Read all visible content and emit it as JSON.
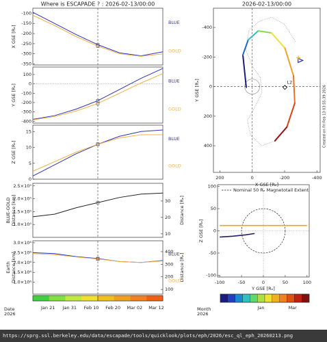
{
  "chart_data": [
    {
      "type": "line",
      "title": "Where is ESCAPADE ? : 2026-02-13/00:00",
      "ylabel": [
        "X GSE [Rₑ]"
      ],
      "x": [
        14,
        24,
        34,
        44,
        54,
        64,
        74
      ],
      "xlim": [
        14,
        74
      ],
      "cursor": 44,
      "ylim": [
        -355,
        -75
      ],
      "yticks": [
        -350,
        -300,
        -250,
        -200,
        -150,
        -100
      ],
      "series": [
        {
          "name": "BLUE",
          "color": "#3030c0",
          "values": [
            -95,
            -150,
            -205,
            -255,
            -295,
            -310,
            -290
          ]
        },
        {
          "name": "GOLD",
          "color": "#f0b040",
          "values": [
            -110,
            -160,
            -215,
            -262,
            -300,
            -312,
            -300
          ]
        }
      ]
    },
    {
      "type": "line",
      "ylabel": [
        "Y GSE [Rₑ]"
      ],
      "x": [
        14,
        24,
        34,
        44,
        54,
        64,
        74
      ],
      "xlim": [
        14,
        74
      ],
      "cursor": 44,
      "ylim": [
        -420,
        180
      ],
      "yticks": [
        -400,
        -300,
        -200,
        -100,
        0,
        100
      ],
      "zero_line": true,
      "series": [
        {
          "name": "BLUE",
          "color": "#3030c0",
          "values": [
            -380,
            -340,
            -270,
            -180,
            -60,
            60,
            165
          ]
        },
        {
          "name": "GOLD",
          "color": "#f0b040",
          "values": [
            -385,
            -350,
            -290,
            -210,
            -100,
            10,
            110
          ]
        }
      ]
    },
    {
      "type": "line",
      "ylabel": [
        "Z GSE [Rₑ]"
      ],
      "x": [
        14,
        24,
        34,
        44,
        54,
        64,
        74
      ],
      "xlim": [
        14,
        74
      ],
      "cursor": 44,
      "ylim": [
        0,
        17
      ],
      "yticks": [
        0,
        5,
        10,
        15
      ],
      "series": [
        {
          "name": "BLUE",
          "color": "#3030c0",
          "values": [
            1,
            4.5,
            8,
            11,
            13.5,
            15,
            15.5
          ]
        },
        {
          "name": "GOLD",
          "color": "#f0b040",
          "values": [
            2.5,
            5.5,
            8.5,
            11,
            13,
            14,
            14
          ]
        }
      ]
    },
    {
      "type": "line",
      "ylabel": [
        "BLUE-GOLD",
        "Distance [km]"
      ],
      "y2label": "Distance [Rₑ]",
      "x": [
        14,
        24,
        34,
        44,
        54,
        64,
        74
      ],
      "xlim": [
        14,
        74
      ],
      "cursor": 44,
      "ylim": [
        50000,
        260000
      ],
      "yticks": [
        {
          "value": 100000,
          "label": "1.0×10⁵"
        },
        {
          "value": 150000,
          "label": "1.5×10⁵"
        },
        {
          "value": 200000,
          "label": "2.0×10⁵"
        },
        {
          "value": 250000,
          "label": "2.5×10⁵"
        }
      ],
      "y2lim": [
        7.85,
        40.8
      ],
      "y2ticks": [
        10,
        20,
        30
      ],
      "series": [
        {
          "color": "#202020",
          "values": [
            130000,
            140000,
            165000,
            185000,
            205000,
            218000,
            222000
          ]
        }
      ]
    },
    {
      "type": "line",
      "ylabel": [
        "Earth",
        "Distance [km]"
      ],
      "y2label": "Distance [Rₑ]",
      "x": [
        14,
        24,
        34,
        44,
        54,
        64,
        74
      ],
      "xlim": [
        14,
        74
      ],
      "cursor": 44,
      "ylim": [
        400000,
        3100000
      ],
      "yticks": [
        {
          "value": 1000000,
          "label": "1.0×10⁶"
        },
        {
          "value": 1500000,
          "label": "1.5×10⁶"
        },
        {
          "value": 2000000,
          "label": "2.0×10⁶"
        },
        {
          "value": 2500000,
          "label": "2.5×10⁶"
        },
        {
          "value": 3000000,
          "label": "3.0×10⁶"
        }
      ],
      "y2lim": [
        62.8,
        486.6
      ],
      "y2ticks": [
        100,
        200,
        300,
        400
      ],
      "xticks": [
        {
          "value": 21,
          "label": "Jan 21"
        },
        {
          "value": 31,
          "label": "Jan 31"
        },
        {
          "value": 41,
          "label": "Feb 10"
        },
        {
          "value": 51,
          "label": "Feb 20"
        },
        {
          "value": 61,
          "label": "Mar 02"
        },
        {
          "value": 71,
          "label": "Mar 12"
        }
      ],
      "xlabel": [
        "Date",
        "2026"
      ],
      "colorbar": [
        "#40d040",
        "#80e040",
        "#c0e840",
        "#f0e030",
        "#f0c020",
        "#f0a020",
        "#f08020",
        "#f06010"
      ],
      "series": [
        {
          "name": "BLUE",
          "color": "#3030c0",
          "values": [
            2500000,
            2450000,
            2300000,
            2200000,
            2050000,
            2000000,
            2100000
          ]
        },
        {
          "name": "GOLD",
          "color": "#f0b040",
          "values": [
            2450000,
            2400000,
            2280000,
            2180000,
            2050000,
            2000000,
            2080000
          ]
        }
      ]
    },
    {
      "type": "orbit",
      "title": "2026-02-13/00:00",
      "xlabel": "X GSE [Rₑ]",
      "ylabel": "Y GSE [Rₑ]",
      "note": "Created on Fri Feb 13 03:55:39 2026",
      "xlim": [
        240,
        -420
      ],
      "xticks": [
        200,
        0,
        -200,
        -400
      ],
      "ylim": [
        -530,
        580
      ],
      "yticks": [
        -400,
        -200,
        0,
        200,
        400
      ],
      "series": [
        {
          "color": "#999999",
          "x": [
            -140,
            -60,
            10,
            30,
            -20,
            -60,
            -50,
            0,
            40,
            20,
            -40,
            -120,
            -200,
            -270
          ],
          "y": [
            367,
            400,
            330,
            230,
            130,
            40,
            -60,
            -140,
            -250,
            -380,
            -440,
            -470,
            -420,
            -300
          ]
        },
        {
          "segment_colors": [
            "#1a1a80",
            "#1a6ad0",
            "#30c0c0",
            "#80e040",
            "#f0e030",
            "#f0a020",
            "#f07020",
            "#e04010",
            "#a01010"
          ],
          "x": [
            37,
            58,
            25,
            -37,
            -119,
            -202,
            -255,
            -263,
            -214,
            -140
          ],
          "y": [
            5,
            -214,
            -316,
            -377,
            -363,
            -260,
            -74,
            112,
            274,
            367
          ]
        }
      ],
      "markers": [
        {
          "x": -296,
          "y": -177,
          "color": "#3030c0",
          "shape": "triangle"
        },
        {
          "x": -285,
          "y": -195,
          "color": "#f0b040",
          "shape": "cross"
        }
      ],
      "points": [
        {
          "name": "L2",
          "x": -202,
          "y": 5
        }
      ]
    },
    {
      "type": "profile",
      "xlabel": "Y GSE [Rₑ]",
      "ylabel": "Z GSE [Rₑ]",
      "legend": "Nominal 50 Rₑ Magnetotail Extent",
      "tail_radius": 50,
      "xlim": [
        -105,
        105
      ],
      "xticks": [
        -100,
        -50,
        0,
        50,
        100
      ],
      "ylim": [
        -104,
        104
      ],
      "yticks": [
        -100,
        -50,
        0,
        50,
        100
      ],
      "series": [
        {
          "color": "#f0a020",
          "x": [
            -100,
            -50,
            0,
            50,
            100
          ],
          "y": [
            12,
            12,
            12,
            12,
            12
          ]
        },
        {
          "color": "#202060",
          "x": [
            -100,
            -70,
            -40,
            -20
          ],
          "y": [
            -14,
            -12,
            -9,
            -6
          ]
        }
      ]
    },
    {
      "type": "colorbar",
      "xlabel": [
        "Month",
        "2026"
      ],
      "xlim": [
        -61,
        105
      ],
      "xticks": [
        {
          "value": 15,
          "label": "Jan"
        },
        {
          "value": 74,
          "label": "Mar"
        }
      ],
      "colors": [
        "#1a1a80",
        "#2040c0",
        "#1a8ad0",
        "#30c0c0",
        "#60d870",
        "#b0e040",
        "#f0e030",
        "#f0b020",
        "#f08020",
        "#e05010",
        "#c02010",
        "#801010"
      ]
    }
  ],
  "footer": {
    "url": "https://sprg.ssl.berkeley.edu/data/escapade/tools/quicklook/plots/eph/2026/esc_ql_eph_20260213.png"
  }
}
